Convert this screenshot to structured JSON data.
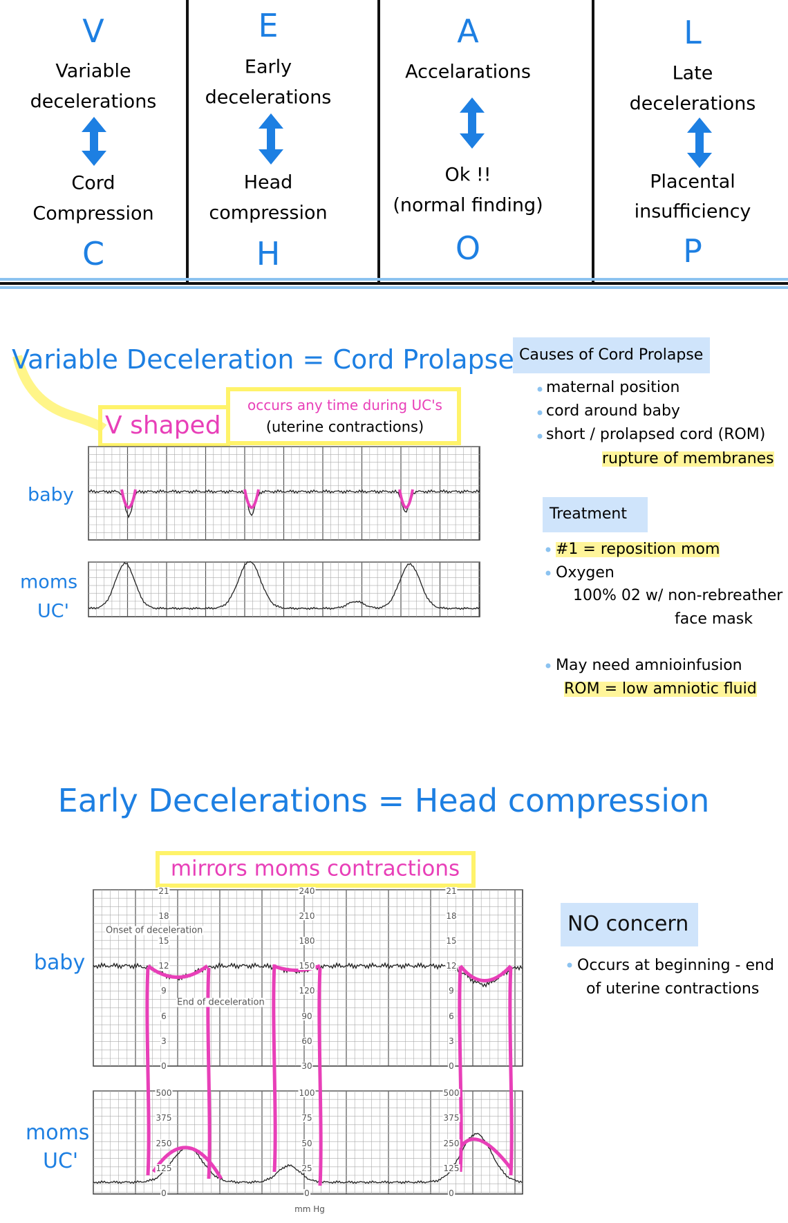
{
  "mnemonic": {
    "columns": [
      {
        "letter": "V",
        "cause_lines": [
          "Variable",
          "decelerations"
        ],
        "meaning_lines": [
          "Cord",
          "Compression"
        ],
        "pair_letter": "C"
      },
      {
        "letter": "E",
        "cause_lines": [
          "Early",
          "decelerations"
        ],
        "meaning_lines": [
          "Head",
          "compression"
        ],
        "pair_letter": "H"
      },
      {
        "letter": "A",
        "cause_lines": [
          "Accelarations"
        ],
        "meaning_lines": [
          "Ok !!",
          "(normal finding)"
        ],
        "pair_letter": "O"
      },
      {
        "letter": "L",
        "cause_lines": [
          "Late",
          "decelerations"
        ],
        "meaning_lines": [
          "Placental",
          "insufficiency"
        ],
        "pair_letter": "P"
      }
    ]
  },
  "variable": {
    "title": "Variable Deceleration = Cord Prolapse",
    "shape_note": "V shaped",
    "timing_note": "occurs any time during UC's",
    "timing_detail": "(uterine contractions)",
    "baby_label": "baby",
    "moms_label": "moms",
    "uc_label": "UC'",
    "causes": {
      "heading": "Causes of Cord Prolapse",
      "items": [
        "maternal position",
        "cord around baby",
        "short / prolapsed cord (ROM)"
      ],
      "rom_note": "rupture of membranes"
    },
    "treatment": {
      "heading": "Treatment",
      "lines": [
        "#1 = reposition mom",
        "Oxygen",
        "100% 02 w/ non-rebreather",
        "face mask",
        "May need amnioinfusion",
        "ROM = low amniotic fluid"
      ]
    }
  },
  "early": {
    "title": "Early Decelerations = Head compression",
    "note": "mirrors moms contractions",
    "baby_label": "baby",
    "moms_label": "moms",
    "uc_label": "UC'",
    "concern": {
      "heading": "NO concern",
      "lines": [
        "Occurs at beginning - end",
        "of uterine contractions"
      ]
    },
    "strip": {
      "onset": "Onset of deceleration",
      "end": "End of deceleration",
      "unit": "mm Hg",
      "fhr_left": [
        "21",
        "18",
        "15",
        "12",
        "9",
        "6",
        "3",
        "0"
      ],
      "fhr_mid": [
        "240",
        "210",
        "180",
        "150",
        "120",
        "90",
        "60",
        "30"
      ],
      "fhr_right": [
        "21",
        "18",
        "15",
        "12",
        "9",
        "6",
        "3",
        "0"
      ],
      "uc_left": [
        "500",
        "375",
        "250",
        "125",
        "0"
      ],
      "uc_mid": [
        "100",
        "75",
        "50",
        "25",
        "0"
      ],
      "uc_right": [
        "500",
        "375",
        "250",
        "125",
        "0"
      ]
    }
  }
}
